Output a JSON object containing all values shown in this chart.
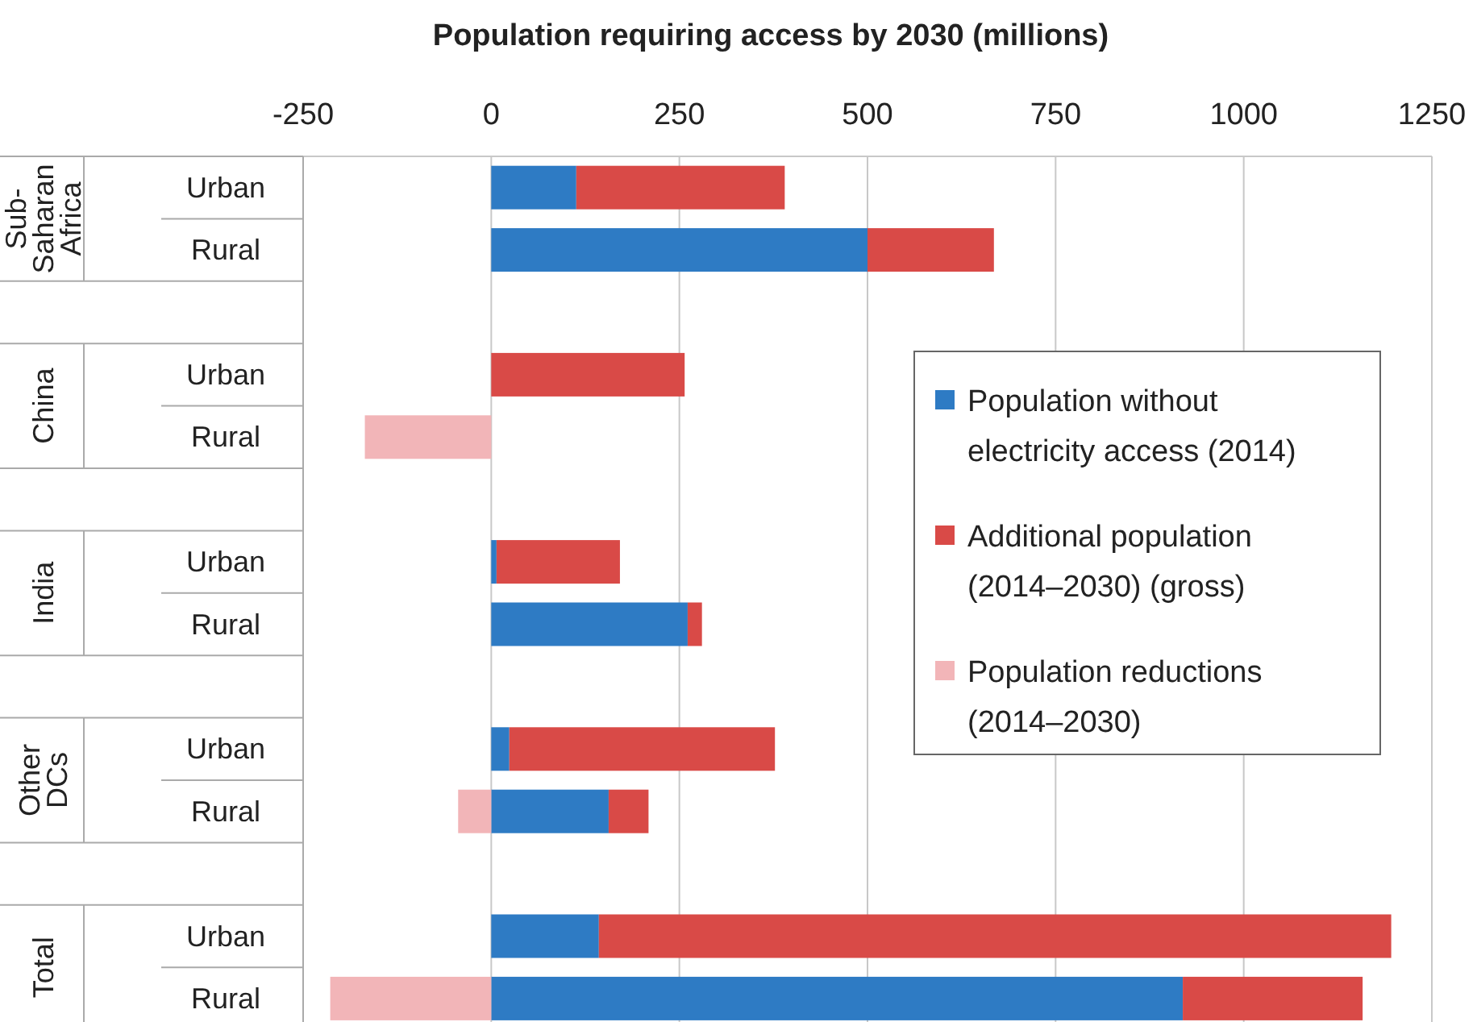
{
  "chart_data": {
    "type": "bar",
    "orientation": "horizontal",
    "stacked": true,
    "xlabel": "Population requiring access by 2030 (millions)",
    "categories": [
      "Urban",
      "Rural",
      null,
      "Urban",
      "Rural",
      null,
      "Urban",
      "Rural",
      null,
      "Urban",
      "Rural",
      null,
      "Urban",
      "Rural"
    ],
    "annotations": [
      "Sub-Saharan Africa",
      "China",
      "India",
      "Other DCs",
      "Total"
    ],
    "series": [
      {
        "name": "Population without electricity access (2014)",
        "color": "#2e7bc4",
        "values": [
          113,
          500,
          null,
          0,
          0,
          null,
          7,
          261,
          null,
          24,
          156,
          null,
          143,
          919
        ]
      },
      {
        "name": "Additional population (2014–2030) (gross)",
        "color": "#d94a47",
        "values": [
          277,
          168,
          null,
          257,
          0,
          null,
          164,
          19,
          null,
          353,
          53,
          null,
          1053,
          239
        ]
      },
      {
        "name": "Population reductions (2014–2030)",
        "color": "#f2b5b8",
        "values": [
          0,
          0,
          null,
          0,
          -168,
          null,
          0,
          0,
          null,
          0,
          -44,
          null,
          0,
          -214
        ]
      }
    ],
    "xlim": [
      -250,
      1250
    ],
    "xticks": [
      -250,
      0,
      250,
      500,
      750,
      1000,
      1250
    ],
    "grid": "x",
    "legend": "right"
  }
}
